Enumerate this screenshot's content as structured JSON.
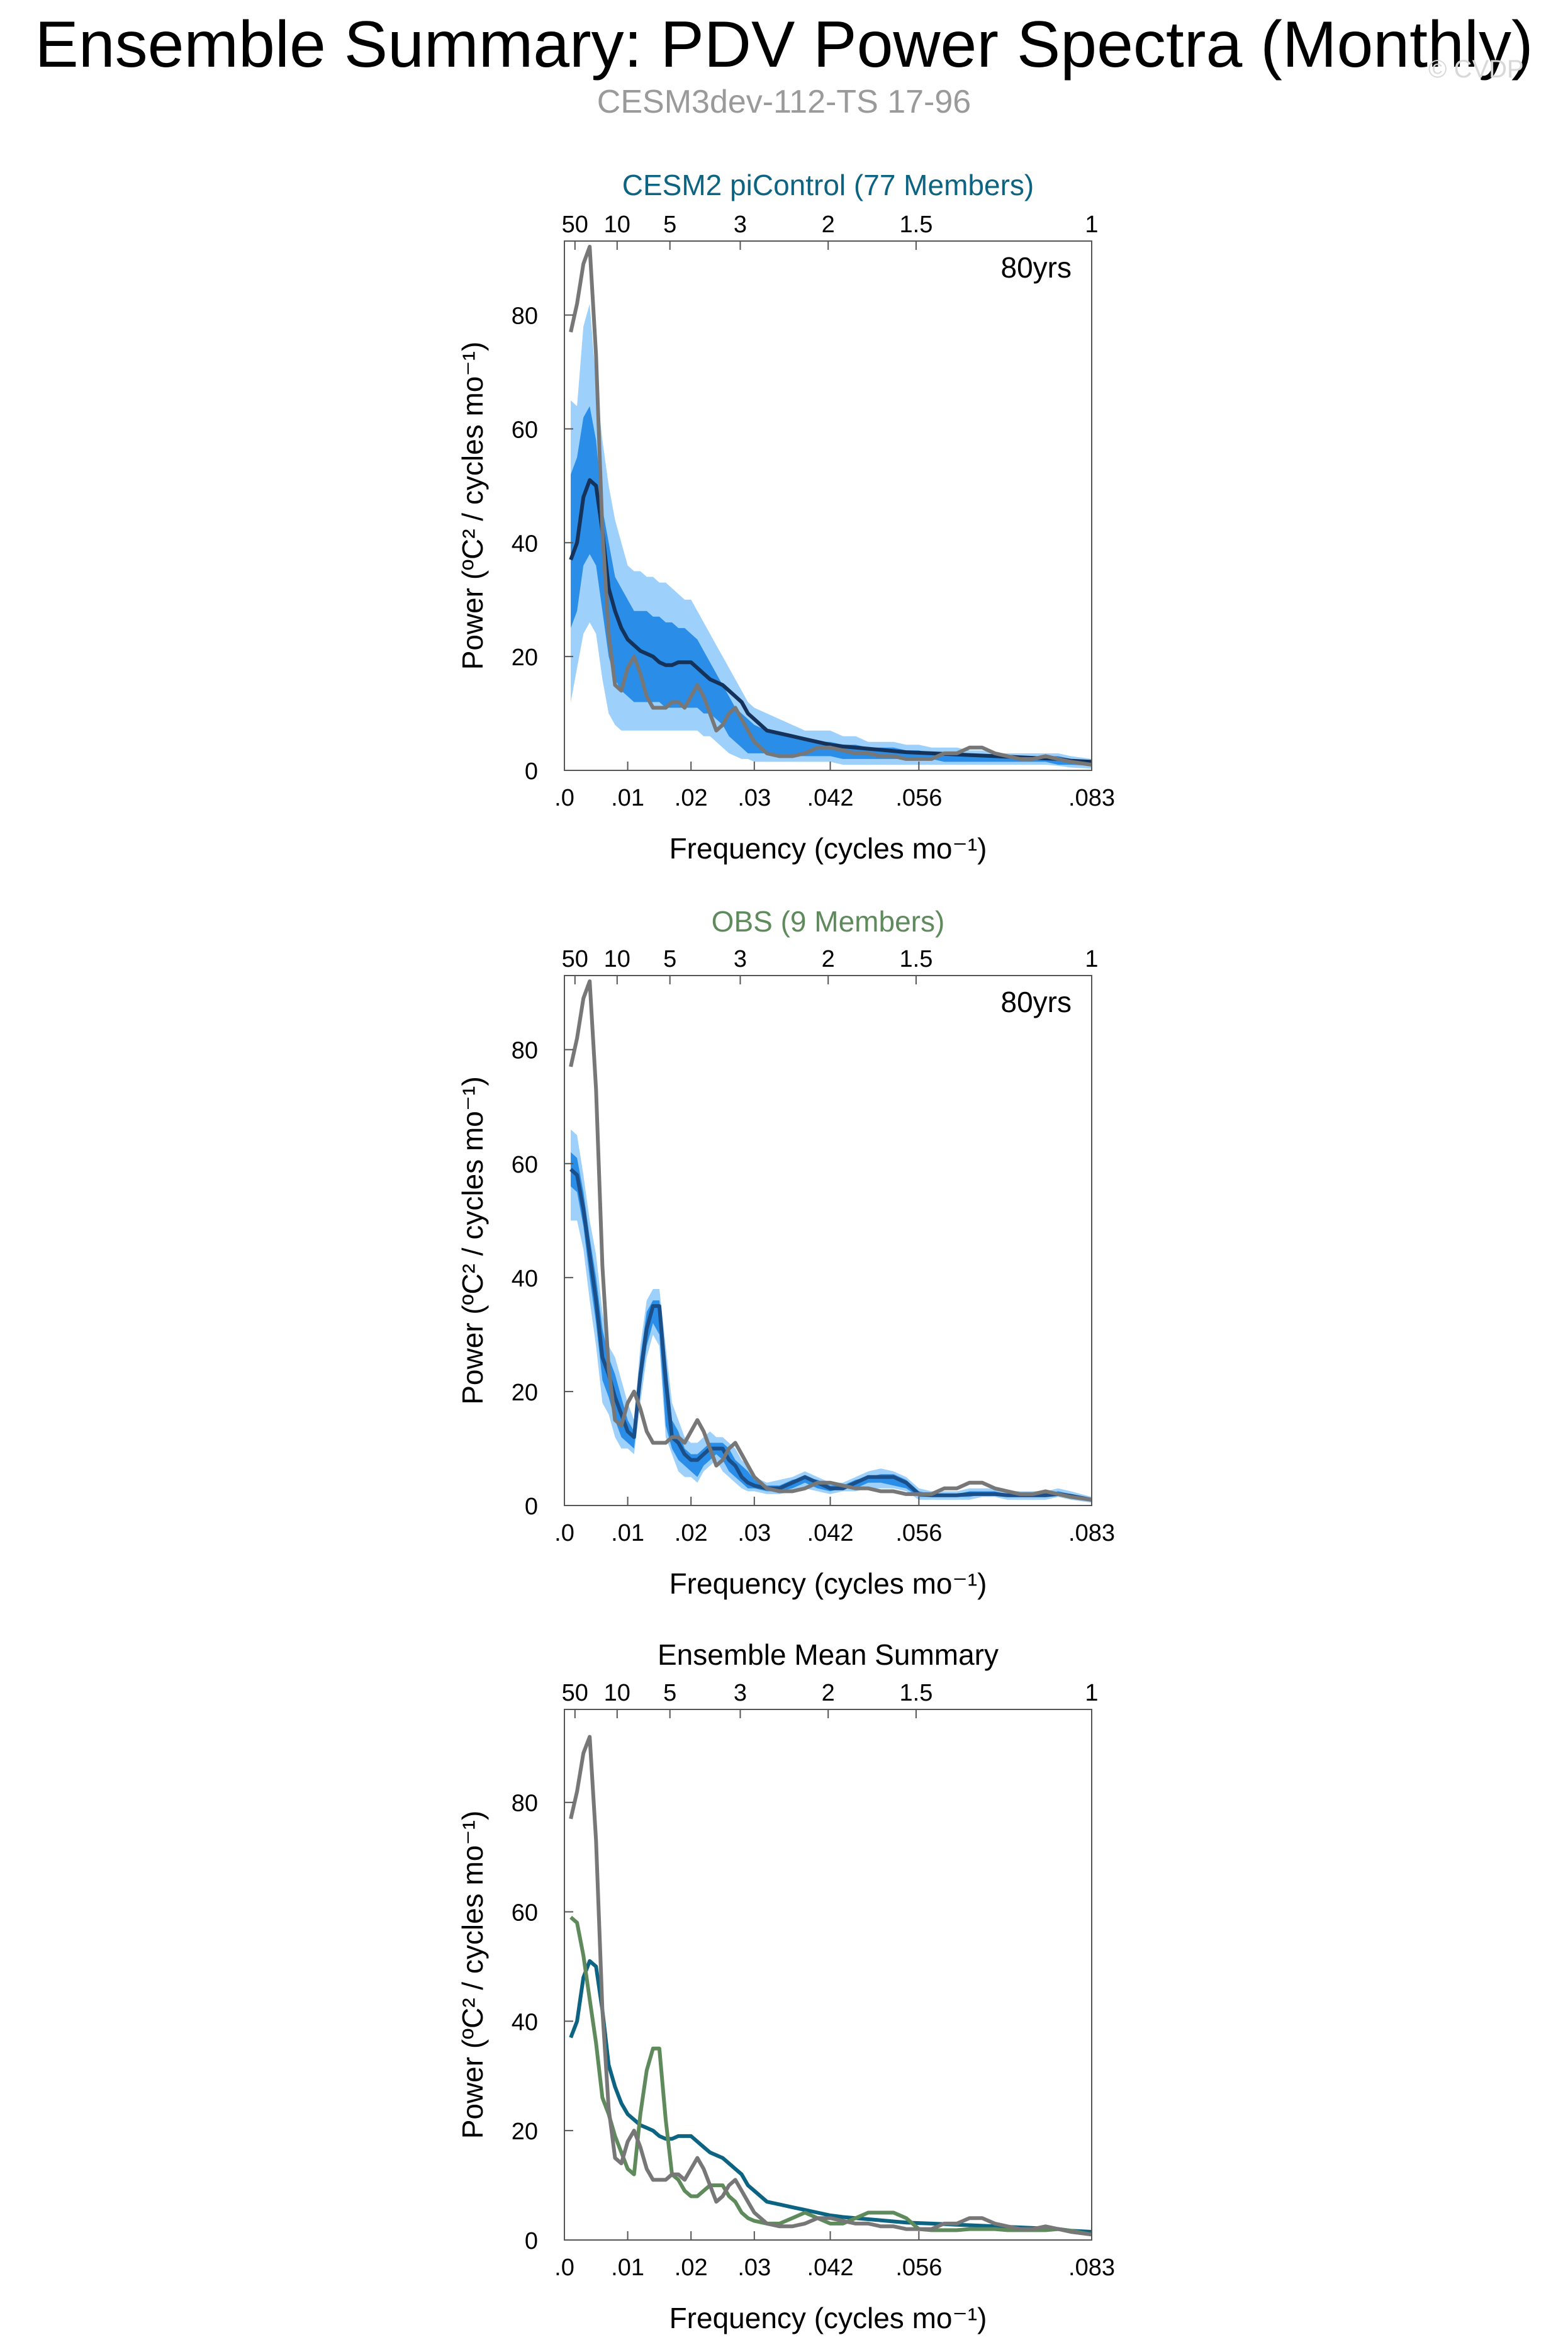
{
  "header": {
    "title": "Ensemble Summary: PDV Power Spectra (Monthly)",
    "subtitle": "CESM3dev-112-TS 17-96",
    "watermark": "© CVDP"
  },
  "colors": {
    "reference": "#777777",
    "model_mean": "#0c6482",
    "cesm2_mean": "#14325a",
    "obs_mean": "#1a4f8a",
    "band_outer": "#9dd0fb",
    "band_inner": "#2a8ee8",
    "obs_line": "#5f8a5c",
    "cesm2_title": "#0c6482",
    "obs_title": "#5f8a5c"
  },
  "chart_data": [
    {
      "type": "line",
      "title": "CESM2 piControl (77 Members)",
      "annotation": "80yrs",
      "xlabel": "Frequency (cycles mo⁻¹)",
      "ylabel": "Power (ºC² / cycles mo⁻¹)",
      "xlim": [
        0,
        0.0833
      ],
      "ylim": [
        0,
        93
      ],
      "xtick_labels": [
        ".0",
        ".01",
        ".02",
        ".03",
        ".042",
        ".056",
        ".083"
      ],
      "xtick_values": [
        0,
        0.01,
        0.02,
        0.03,
        0.042,
        0.056,
        0.0833
      ],
      "top_axis_period_labels": [
        "50",
        "10",
        "5",
        "3",
        "2",
        "1.5",
        "1"
      ],
      "top_axis_period_positions": [
        0.00167,
        0.00833,
        0.01667,
        0.02778,
        0.04167,
        0.05556,
        0.0833
      ],
      "ytick_values": [
        0,
        20,
        40,
        60,
        80
      ],
      "grid": false,
      "x": [
        0.001,
        0.002,
        0.003,
        0.004,
        0.005,
        0.006,
        0.007,
        0.008,
        0.009,
        0.01,
        0.011,
        0.012,
        0.013,
        0.014,
        0.015,
        0.016,
        0.017,
        0.018,
        0.019,
        0.02,
        0.021,
        0.022,
        0.023,
        0.024,
        0.025,
        0.026,
        0.027,
        0.028,
        0.029,
        0.03,
        0.032,
        0.034,
        0.036,
        0.038,
        0.04,
        0.042,
        0.044,
        0.046,
        0.048,
        0.05,
        0.052,
        0.054,
        0.056,
        0.058,
        0.06,
        0.062,
        0.064,
        0.066,
        0.068,
        0.07,
        0.072,
        0.074,
        0.076,
        0.078,
        0.08,
        0.0833
      ],
      "band_outer_upper": [
        65,
        64,
        78,
        82,
        68,
        58,
        50,
        44,
        40,
        36,
        35,
        35,
        34,
        34,
        33,
        33,
        32,
        31,
        30,
        30,
        28,
        26,
        24,
        22,
        20,
        18,
        16,
        14,
        12,
        11,
        10,
        9,
        8,
        7,
        7,
        7,
        6,
        6,
        5,
        5,
        5,
        4.5,
        4.5,
        4,
        4,
        4,
        3.5,
        3.5,
        3,
        3,
        3,
        3,
        3,
        3,
        2.5,
        2
      ],
      "band_inner_upper": [
        52,
        55,
        62,
        64,
        58,
        46,
        40,
        34,
        32,
        30,
        28,
        28,
        28,
        27,
        27,
        26,
        26,
        25,
        25,
        24,
        23,
        21,
        19,
        17,
        15,
        13,
        11,
        10,
        9,
        8,
        7,
        6.5,
        6,
        5.5,
        5,
        5,
        4.5,
        4.5,
        4,
        4,
        4,
        3.5,
        3.5,
        3,
        3,
        3,
        3,
        2.5,
        2.5,
        2.5,
        2.5,
        2.5,
        2.5,
        2.5,
        2,
        1.5
      ],
      "band_inner_lower": [
        25,
        28,
        36,
        38,
        36,
        28,
        20,
        16,
        14,
        13,
        12,
        12,
        12,
        12,
        12,
        11,
        11,
        11,
        11,
        11,
        11,
        10,
        10,
        9,
        8,
        6,
        5,
        4,
        3,
        3,
        3,
        2.5,
        2.5,
        2.5,
        2.5,
        2.5,
        2,
        2,
        2,
        2,
        2,
        2,
        2,
        2,
        1.5,
        1.5,
        1.5,
        1.5,
        1.5,
        1.5,
        1.5,
        1.5,
        1.5,
        1,
        1,
        0.8
      ],
      "band_outer_lower": [
        12,
        18,
        24,
        26,
        24,
        16,
        10,
        8,
        7,
        7,
        7,
        7,
        7,
        7,
        7,
        7,
        7,
        7,
        7,
        7,
        7,
        6,
        6,
        5,
        4,
        3,
        2.5,
        2,
        2,
        1.5,
        1.5,
        1.5,
        1.5,
        1.5,
        1.5,
        1.5,
        1,
        1,
        1,
        1,
        1,
        1,
        1,
        1,
        1,
        1,
        1,
        1,
        1,
        1,
        1,
        1,
        1,
        0.8,
        0.5,
        0.3
      ],
      "series": [
        {
          "role": "mean",
          "y": [
            37,
            40,
            48,
            51,
            50,
            42,
            32,
            28,
            25,
            23,
            22,
            21,
            20.5,
            20,
            19,
            18.5,
            18.5,
            19,
            19,
            19,
            18,
            17,
            16,
            15.5,
            15,
            14,
            13,
            12,
            10,
            9,
            7,
            6.5,
            6,
            5.5,
            5,
            4.5,
            4.2,
            4,
            3.8,
            3.6,
            3.4,
            3.2,
            3.1,
            3,
            2.9,
            2.8,
            2.7,
            2.6,
            2.5,
            2.4,
            2.3,
            2.2,
            2.1,
            2,
            1.7,
            1.5
          ]
        },
        {
          "role": "reference",
          "y": [
            77,
            82,
            89,
            92,
            73,
            42,
            24,
            15,
            14,
            18,
            20,
            17,
            13,
            11,
            11,
            11,
            12,
            12,
            11,
            13,
            15,
            13,
            10,
            7,
            8,
            10,
            11,
            9,
            7,
            5,
            3,
            2.5,
            2.5,
            3,
            4,
            4,
            3.5,
            3,
            3,
            2.5,
            2.5,
            2,
            2,
            2,
            3,
            3,
            4,
            4,
            3,
            2.5,
            2,
            2,
            2.5,
            2,
            1.5,
            1
          ]
        }
      ]
    },
    {
      "type": "line",
      "title": "OBS (9 Members)",
      "annotation": "80yrs",
      "xlabel": "Frequency (cycles mo⁻¹)",
      "ylabel": "Power (ºC² / cycles mo⁻¹)",
      "xlim": [
        0,
        0.0833
      ],
      "ylim": [
        0,
        93
      ],
      "xtick_labels": [
        ".0",
        ".01",
        ".02",
        ".03",
        ".042",
        ".056",
        ".083"
      ],
      "xtick_values": [
        0,
        0.01,
        0.02,
        0.03,
        0.042,
        0.056,
        0.0833
      ],
      "top_axis_period_labels": [
        "50",
        "10",
        "5",
        "3",
        "2",
        "1.5",
        "1"
      ],
      "top_axis_period_positions": [
        0.00167,
        0.00833,
        0.01667,
        0.02778,
        0.04167,
        0.05556,
        0.0833
      ],
      "ytick_values": [
        0,
        20,
        40,
        60,
        80
      ],
      "grid": false,
      "x": [
        0.001,
        0.002,
        0.003,
        0.004,
        0.005,
        0.006,
        0.007,
        0.008,
        0.009,
        0.01,
        0.011,
        0.012,
        0.013,
        0.014,
        0.015,
        0.016,
        0.017,
        0.018,
        0.019,
        0.02,
        0.021,
        0.022,
        0.023,
        0.024,
        0.025,
        0.026,
        0.027,
        0.028,
        0.029,
        0.03,
        0.032,
        0.034,
        0.036,
        0.038,
        0.04,
        0.042,
        0.044,
        0.046,
        0.048,
        0.05,
        0.052,
        0.054,
        0.056,
        0.058,
        0.06,
        0.062,
        0.064,
        0.066,
        0.068,
        0.07,
        0.072,
        0.074,
        0.076,
        0.078,
        0.08,
        0.0833
      ],
      "band_outer_upper": [
        66,
        65,
        58,
        50,
        44,
        34,
        28,
        26,
        22,
        18,
        15,
        28,
        36,
        38,
        38,
        28,
        18,
        15,
        12,
        11,
        11,
        12,
        13,
        12,
        12,
        11,
        10,
        8,
        7,
        5,
        4,
        4.5,
        5,
        6,
        5,
        4,
        4,
        5,
        6,
        6.5,
        6,
        5,
        3,
        2.5,
        2.5,
        2.5,
        3,
        3,
        3,
        2.5,
        2.5,
        2.5,
        2.5,
        3,
        2.5,
        1.5
      ],
      "band_inner_upper": [
        62,
        61,
        55,
        47,
        40,
        31,
        26,
        23,
        19,
        15,
        13,
        26,
        34,
        36,
        36,
        26,
        15,
        13,
        10,
        9,
        9,
        10,
        11,
        11,
        11,
        10,
        8,
        7,
        6,
        4.5,
        3.5,
        3.5,
        4.5,
        5,
        4.5,
        3.5,
        3.5,
        4.5,
        5,
        5.5,
        5.5,
        4.5,
        2.5,
        2,
        2,
        2,
        2.5,
        2.5,
        2.5,
        2,
        2,
        2,
        2,
        2.5,
        2,
        1.2
      ],
      "band_inner_lower": [
        56,
        55,
        49,
        40,
        32,
        22,
        19,
        15,
        12,
        11,
        10,
        20,
        28,
        32,
        30,
        14,
        10,
        8,
        7,
        6,
        5,
        7,
        8,
        9,
        8,
        6,
        5,
        4,
        3,
        3,
        2.5,
        2.5,
        3,
        4,
        3,
        2.5,
        3,
        3,
        4,
        4,
        3.5,
        3,
        1.5,
        1.5,
        1.5,
        1.5,
        1.5,
        2,
        2,
        1.5,
        1.5,
        1.5,
        1.5,
        2,
        1.5,
        0.8
      ],
      "band_outer_lower": [
        50,
        50,
        45,
        36,
        28,
        18,
        16,
        12,
        10,
        10,
        9,
        18,
        26,
        30,
        28,
        12,
        9,
        6,
        5,
        5,
        4,
        6,
        7,
        8,
        6,
        5,
        4,
        3,
        2.5,
        2.5,
        2,
        2,
        2.5,
        3,
        2.5,
        2,
        2.5,
        2.5,
        3,
        3,
        3,
        2.5,
        1,
        1,
        1,
        1,
        1,
        1.5,
        1.5,
        1,
        1,
        1,
        1,
        1.5,
        1,
        0.5
      ],
      "series": [
        {
          "role": "mean",
          "y": [
            59,
            58,
            52,
            44,
            36,
            26,
            23,
            19,
            16,
            13,
            12,
            23,
            31,
            35,
            35,
            22,
            12,
            11,
            9,
            8,
            8,
            9,
            10,
            10,
            10,
            8,
            7,
            5,
            4,
            3.5,
            3,
            3,
            4,
            5,
            4,
            3,
            3,
            4,
            5,
            5,
            5,
            4,
            2,
            1.8,
            1.8,
            1.8,
            2,
            2,
            2,
            1.8,
            1.8,
            1.8,
            1.8,
            2,
            1.7,
            1
          ]
        },
        {
          "role": "reference",
          "y": [
            77,
            82,
            89,
            92,
            73,
            42,
            24,
            15,
            14,
            18,
            20,
            17,
            13,
            11,
            11,
            11,
            12,
            12,
            11,
            13,
            15,
            13,
            10,
            7,
            8,
            10,
            11,
            9,
            7,
            5,
            3,
            2.5,
            2.5,
            3,
            4,
            4,
            3.5,
            3,
            3,
            2.5,
            2.5,
            2,
            2,
            2,
            3,
            3,
            4,
            4,
            3,
            2.5,
            2,
            2,
            2.5,
            2,
            1.5,
            1
          ]
        }
      ]
    },
    {
      "type": "line",
      "title": "Ensemble Mean Summary",
      "xlabel": "Frequency (cycles mo⁻¹)",
      "ylabel": "Power (ºC² / cycles mo⁻¹)",
      "xlim": [
        0,
        0.0833
      ],
      "ylim": [
        0,
        97
      ],
      "xtick_labels": [
        ".0",
        ".01",
        ".02",
        ".03",
        ".042",
        ".056",
        ".083"
      ],
      "xtick_values": [
        0,
        0.01,
        0.02,
        0.03,
        0.042,
        0.056,
        0.0833
      ],
      "top_axis_period_labels": [
        "50",
        "10",
        "5",
        "3",
        "2",
        "1.5",
        "1"
      ],
      "top_axis_period_positions": [
        0.00167,
        0.00833,
        0.01667,
        0.02778,
        0.04167,
        0.05556,
        0.0833
      ],
      "ytick_values": [
        0,
        20,
        40,
        60,
        80
      ],
      "grid": false,
      "x": [
        0.001,
        0.002,
        0.003,
        0.004,
        0.005,
        0.006,
        0.007,
        0.008,
        0.009,
        0.01,
        0.011,
        0.012,
        0.013,
        0.014,
        0.015,
        0.016,
        0.017,
        0.018,
        0.019,
        0.02,
        0.021,
        0.022,
        0.023,
        0.024,
        0.025,
        0.026,
        0.027,
        0.028,
        0.029,
        0.03,
        0.032,
        0.034,
        0.036,
        0.038,
        0.04,
        0.042,
        0.044,
        0.046,
        0.048,
        0.05,
        0.052,
        0.054,
        0.056,
        0.058,
        0.06,
        0.062,
        0.064,
        0.066,
        0.068,
        0.07,
        0.072,
        0.074,
        0.076,
        0.078,
        0.08,
        0.0833
      ],
      "series": [
        {
          "role": "model",
          "y": [
            37,
            40,
            48,
            51,
            50,
            42,
            32,
            28,
            25,
            23,
            22,
            21,
            20.5,
            20,
            19,
            18.5,
            18.5,
            19,
            19,
            19,
            18,
            17,
            16,
            15.5,
            15,
            14,
            13,
            12,
            10,
            9,
            7,
            6.5,
            6,
            5.5,
            5,
            4.5,
            4.2,
            4,
            3.8,
            3.6,
            3.4,
            3.2,
            3.1,
            3,
            2.9,
            2.8,
            2.7,
            2.6,
            2.5,
            2.4,
            2.3,
            2.2,
            2.1,
            2,
            1.7,
            1.5
          ]
        },
        {
          "role": "obs",
          "y": [
            59,
            58,
            52,
            44,
            36,
            26,
            23,
            19,
            16,
            13,
            12,
            23,
            31,
            35,
            35,
            22,
            12,
            11,
            9,
            8,
            8,
            9,
            10,
            10,
            10,
            8,
            7,
            5,
            4,
            3.5,
            3,
            3,
            4,
            5,
            4,
            3,
            3,
            4,
            5,
            5,
            5,
            4,
            2,
            1.8,
            1.8,
            1.8,
            2,
            2,
            2,
            1.8,
            1.8,
            1.8,
            1.8,
            2,
            1.7,
            1
          ]
        },
        {
          "role": "reference",
          "y": [
            77,
            82,
            89,
            92,
            73,
            42,
            24,
            15,
            14,
            18,
            20,
            17,
            13,
            11,
            11,
            11,
            12,
            12,
            11,
            13,
            15,
            13,
            10,
            7,
            8,
            10,
            11,
            9,
            7,
            5,
            3,
            2.5,
            2.5,
            3,
            4,
            4,
            3.5,
            3,
            3,
            2.5,
            2.5,
            2,
            2,
            2,
            3,
            3,
            4,
            4,
            3,
            2.5,
            2,
            2,
            2.5,
            2,
            1.5,
            1
          ]
        }
      ]
    }
  ]
}
